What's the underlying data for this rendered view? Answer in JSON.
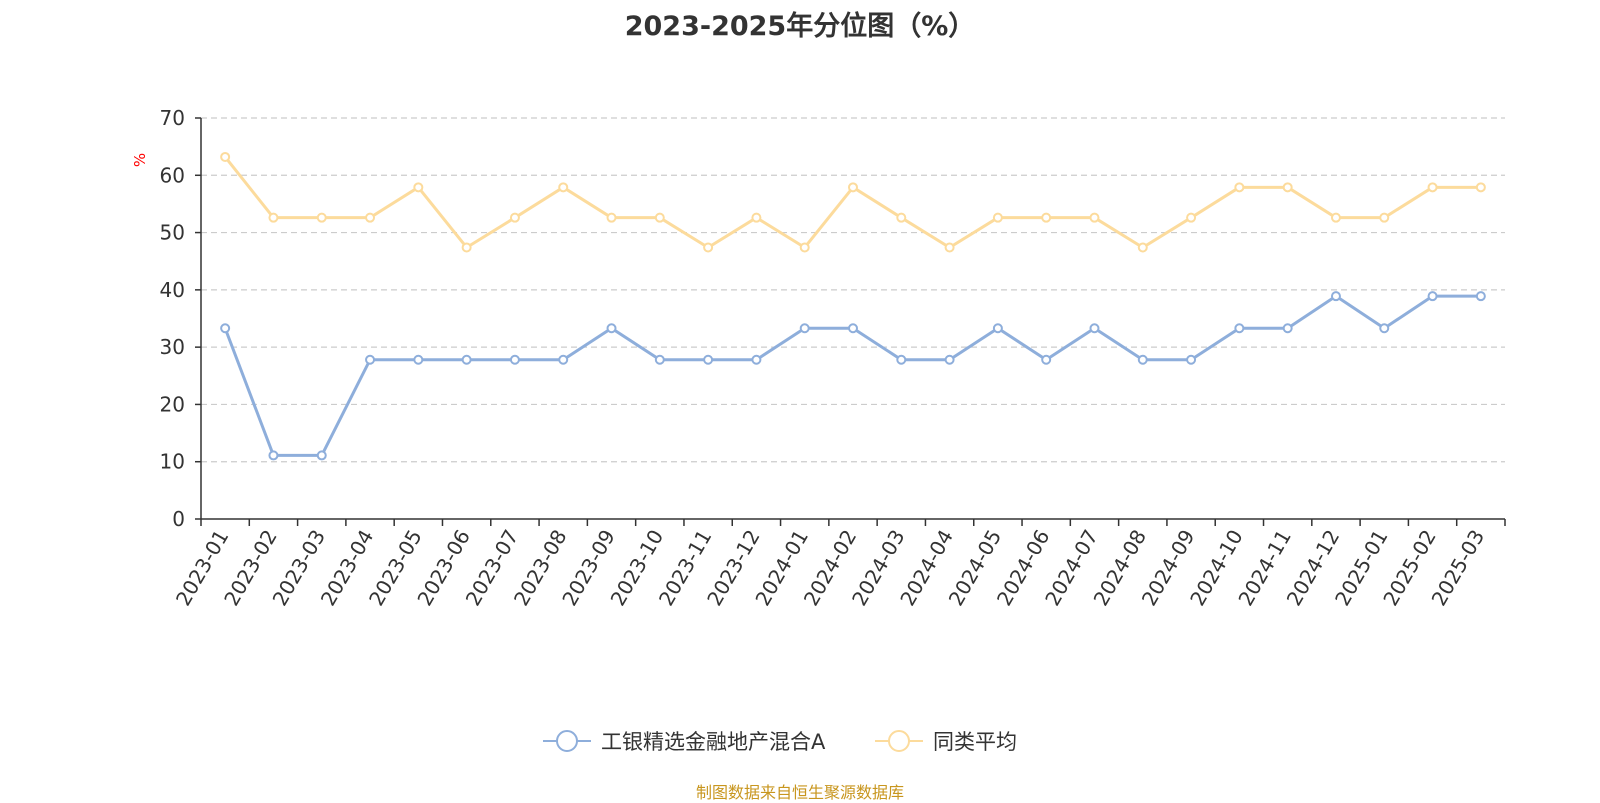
{
  "title": "2023-2025年分位图（%）",
  "source_note": "制图数据来自恒生聚源数据库",
  "colors": {
    "series_fund": "#8eaedb",
    "series_avg": "#fcdb9c",
    "grid": "#cccccc",
    "axis": "#333333",
    "unit_label": "#ff0000",
    "source": "#c8961e"
  },
  "chart_data": {
    "type": "line",
    "title": "2023-2025年分位图（%）",
    "ylabel": "%",
    "xlabel": "",
    "ylim": [
      0,
      70
    ],
    "yticks": [
      0,
      10,
      20,
      30,
      40,
      50,
      60,
      70
    ],
    "grid": true,
    "legend_position": "bottom",
    "categories": [
      "2023-01",
      "2023-02",
      "2023-03",
      "2023-04",
      "2023-05",
      "2023-06",
      "2023-07",
      "2023-08",
      "2023-09",
      "2023-10",
      "2023-11",
      "2023-12",
      "2024-01",
      "2024-02",
      "2024-03",
      "2024-04",
      "2024-05",
      "2024-06",
      "2024-07",
      "2024-08",
      "2024-09",
      "2024-10",
      "2024-11",
      "2024-12",
      "2025-01",
      "2025-02",
      "2025-03"
    ],
    "series": [
      {
        "name": "工银精选金融地产混合A",
        "color": "#8eaedb",
        "values": [
          33.3,
          11.1,
          11.1,
          27.8,
          27.8,
          27.8,
          27.8,
          27.8,
          33.3,
          27.8,
          27.8,
          27.8,
          33.3,
          33.3,
          27.8,
          27.8,
          33.3,
          27.8,
          33.3,
          27.8,
          27.8,
          33.3,
          33.3,
          38.9,
          33.3,
          38.9,
          38.9
        ]
      },
      {
        "name": "同类平均",
        "color": "#fcdb9c",
        "values": [
          63.2,
          52.6,
          52.6,
          52.6,
          57.9,
          47.4,
          52.6,
          57.9,
          52.6,
          52.6,
          47.4,
          52.6,
          47.4,
          57.9,
          52.6,
          47.4,
          52.6,
          52.6,
          52.6,
          47.4,
          52.6,
          57.9,
          57.9,
          52.6,
          52.6,
          57.9,
          57.9
        ]
      }
    ]
  }
}
